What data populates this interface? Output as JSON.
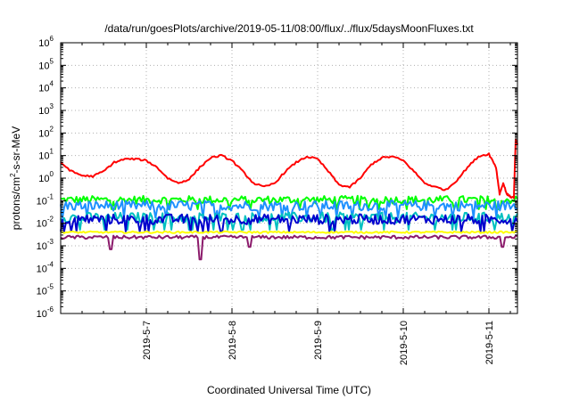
{
  "chart_data": {
    "type": "line",
    "title": "/data/run/goesPlots/archive/2019-05-11/08:00/flux/../flux/5daysMoonFluxes.txt",
    "xlabel": "Coordinated Universal Time (UTC)",
    "ylabel": "protons/cm2-s-sr-MeV",
    "ylabel_parts": {
      "pre": "protons/cm",
      "sup": "2",
      "post": "-s-sr-MeV"
    },
    "y_scale": "log",
    "ylim_exponent": [
      -6,
      6
    ],
    "y_tick_base": "10",
    "y_tick_exponents": [
      "-6",
      "-5",
      "-4",
      "-3",
      "-2",
      "-1",
      "0",
      "1",
      "2",
      "3",
      "4",
      "5",
      "6"
    ],
    "xlim": [
      "2019-05-06T00:00",
      "2019-05-11T08:00"
    ],
    "x_ticks": [
      "2019-5-7",
      "2019-5-8",
      "2019-5-9",
      "2019-5-10",
      "2019-5-11"
    ],
    "grid": true,
    "colors": {
      "red": "#ff0000",
      "green": "#00ff00",
      "blue_light": "#1e90ff",
      "blue_dark": "#0000cd",
      "cyan": "#00c0c0",
      "yellow": "#ffff00",
      "purple": "#8b1a6b"
    },
    "series": [
      {
        "color": "#ff0000",
        "points": [
          [
            "2019-05-06T00:00",
            5
          ],
          [
            "2019-05-06T03:00",
            2
          ],
          [
            "2019-05-06T06:00",
            1.3
          ],
          [
            "2019-05-06T09:00",
            1.2
          ],
          [
            "2019-05-06T12:00",
            2
          ],
          [
            "2019-05-06T15:00",
            5
          ],
          [
            "2019-05-06T18:00",
            7
          ],
          [
            "2019-05-06T21:00",
            7
          ],
          [
            "2019-05-07T00:00",
            6
          ],
          [
            "2019-05-07T03:00",
            3
          ],
          [
            "2019-05-07T06:00",
            1
          ],
          [
            "2019-05-07T09:00",
            0.6
          ],
          [
            "2019-05-07T12:00",
            0.9
          ],
          [
            "2019-05-07T15:00",
            3
          ],
          [
            "2019-05-07T18:00",
            8
          ],
          [
            "2019-05-07T21:00",
            10
          ],
          [
            "2019-05-08T00:00",
            6
          ],
          [
            "2019-05-08T03:00",
            2
          ],
          [
            "2019-05-08T06:00",
            0.6
          ],
          [
            "2019-05-08T09:00",
            0.4
          ],
          [
            "2019-05-08T12:00",
            0.6
          ],
          [
            "2019-05-08T15:00",
            2
          ],
          [
            "2019-05-08T18:00",
            5
          ],
          [
            "2019-05-08T21:00",
            9
          ],
          [
            "2019-05-09T00:00",
            7
          ],
          [
            "2019-05-09T03:00",
            2
          ],
          [
            "2019-05-09T06:00",
            0.5
          ],
          [
            "2019-05-09T09:00",
            0.4
          ],
          [
            "2019-05-09T12:00",
            1
          ],
          [
            "2019-05-09T15:00",
            4
          ],
          [
            "2019-05-09T18:00",
            8
          ],
          [
            "2019-05-09T21:00",
            9
          ],
          [
            "2019-05-10T00:00",
            6
          ],
          [
            "2019-05-10T03:00",
            2
          ],
          [
            "2019-05-10T06:00",
            0.6
          ],
          [
            "2019-05-10T09:00",
            0.4
          ],
          [
            "2019-05-10T12:00",
            0.3
          ],
          [
            "2019-05-10T15:00",
            0.8
          ],
          [
            "2019-05-10T18:00",
            3
          ],
          [
            "2019-05-10T21:00",
            9
          ],
          [
            "2019-05-11T00:00",
            12
          ],
          [
            "2019-05-11T02:00",
            3
          ],
          [
            "2019-05-11T03:00",
            0.2
          ],
          [
            "2019-05-11T04:00",
            0.6
          ],
          [
            "2019-05-11T05:00",
            0.2
          ],
          [
            "2019-05-11T06:00",
            0.15
          ],
          [
            "2019-05-11T07:00",
            0.14
          ],
          [
            "2019-05-11T07:30",
            50
          ],
          [
            "2019-05-11T08:00",
            30
          ]
        ]
      },
      {
        "color": "#00ff00",
        "level": 0.11,
        "noise": 0.35,
        "dips": []
      },
      {
        "color": "#1e90ff",
        "level": 0.06,
        "noise": 0.45,
        "dips": []
      },
      {
        "color": "#00c0c0",
        "level": 0.018,
        "noise": 0.45,
        "dips": []
      },
      {
        "color": "#0000cd",
        "level": 0.015,
        "noise": 0.45,
        "dips": []
      },
      {
        "color": "#ffff00",
        "level": 0.004,
        "noise": 0.08,
        "dips": []
      },
      {
        "color": "#8b1a6b",
        "level": 0.0024,
        "noise": 0.15,
        "dips": [
          [
            "2019-05-06T14:00",
            0.0007
          ],
          [
            "2019-05-07T15:20",
            0.00025
          ],
          [
            "2019-05-08T05:00",
            0.0009
          ],
          [
            "2019-05-11T04:00",
            0.0009
          ]
        ]
      }
    ]
  }
}
